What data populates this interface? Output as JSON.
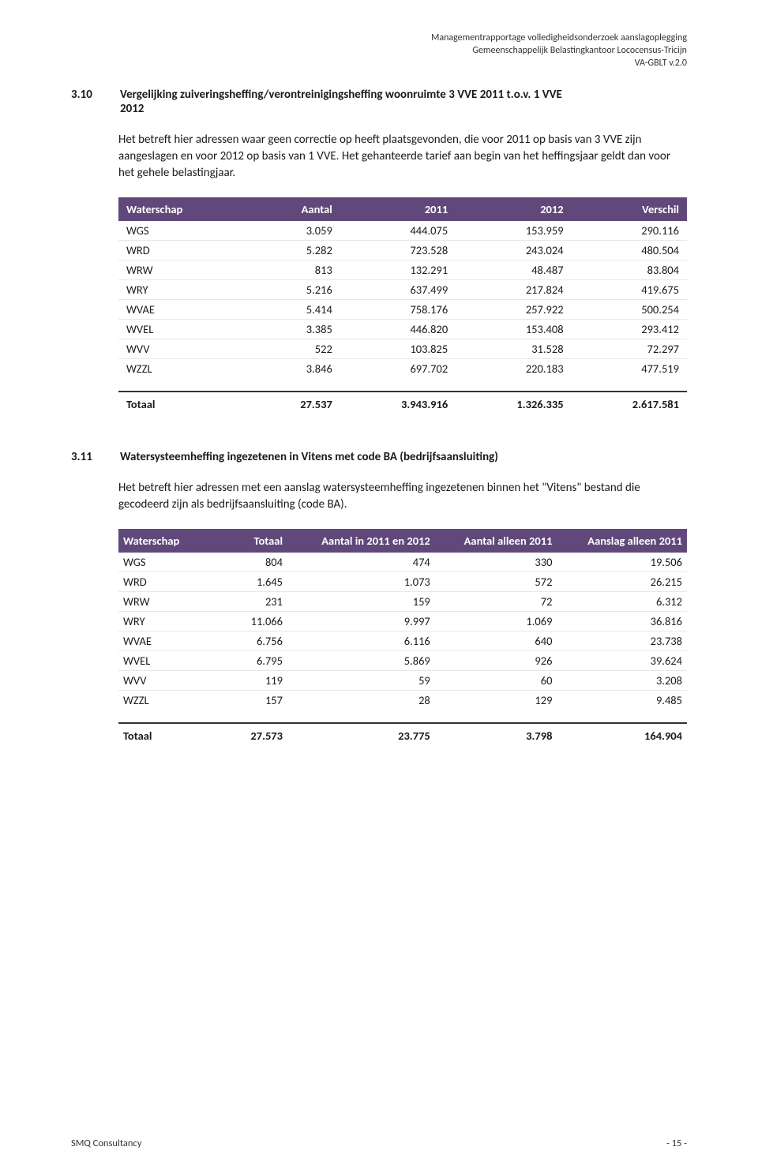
{
  "header": {
    "line1": "Managementrapportage  volledigheidsonderzoek aanslagoplegging",
    "line2": "Gemeenschappelijk Belastingkantoor Lococensus-Tricijn",
    "line3": "VA-GBLT v.2.0"
  },
  "section_3_10": {
    "num": "3.10",
    "title": "Vergelijking zuiveringsheffing/verontreinigingsheffing woonruimte 3 VVE 2011 t.o.v. 1 VVE",
    "sub": "2012",
    "para": "Het betreft hier adressen waar geen correctie op heeft plaatsgevonden, die voor 2011 op basis van 3 VVE zijn aangeslagen en voor 2012 op basis van 1 VVE. Het gehanteerde tarief aan begin van het heffingsjaar geldt dan voor het gehele belastingjaar.",
    "table": {
      "columns": [
        "Waterschap",
        "Aantal",
        "2011",
        "2012",
        "Verschil"
      ],
      "rows": [
        [
          "WGS",
          "3.059",
          "444.075",
          "153.959",
          "290.116"
        ],
        [
          "WRD",
          "5.282",
          "723.528",
          "243.024",
          "480.504"
        ],
        [
          "WRW",
          "813",
          "132.291",
          "48.487",
          "83.804"
        ],
        [
          "WRY",
          "5.216",
          "637.499",
          "217.824",
          "419.675"
        ],
        [
          "WVAE",
          "5.414",
          "758.176",
          "257.922",
          "500.254"
        ],
        [
          "WVEL",
          "3.385",
          "446.820",
          "153.408",
          "293.412"
        ],
        [
          "WVV",
          "522",
          "103.825",
          "31.528",
          "72.297"
        ],
        [
          "WZZL",
          "3.846",
          "697.702",
          "220.183",
          "477.519"
        ]
      ],
      "total": [
        "Totaal",
        "27.537",
        "3.943.916",
        "1.326.335",
        "2.617.581"
      ]
    }
  },
  "section_3_11": {
    "num": "3.11",
    "title": "Watersysteemheffing ingezetenen in Vitens met code BA (bedrijfsaansluiting)",
    "para": "Het betreft hier adressen met een aanslag watersysteemheffing ingezetenen binnen het \"Vitens\" bestand die gecodeerd zijn als bedrijfsaansluiting (code BA).",
    "table": {
      "columns": [
        "Waterschap",
        "Totaal",
        "Aantal in 2011 en 2012",
        "Aantal alleen 2011",
        "Aanslag alleen 2011"
      ],
      "rows": [
        [
          "WGS",
          "804",
          "474",
          "330",
          "19.506"
        ],
        [
          "WRD",
          "1.645",
          "1.073",
          "572",
          "26.215"
        ],
        [
          "WRW",
          "231",
          "159",
          "72",
          "6.312"
        ],
        [
          "WRY",
          "11.066",
          "9.997",
          "1.069",
          "36.816"
        ],
        [
          "WVAE",
          "6.756",
          "6.116",
          "640",
          "23.738"
        ],
        [
          "WVEL",
          "6.795",
          "5.869",
          "926",
          "39.624"
        ],
        [
          "WVV",
          "119",
          "59",
          "60",
          "3.208"
        ],
        [
          "WZZL",
          "157",
          "28",
          "129",
          "9.485"
        ]
      ],
      "total": [
        "Totaal",
        "27.573",
        "23.775",
        "3.798",
        "164.904"
      ]
    }
  },
  "footer": {
    "left": "SMQ Consultancy",
    "right": "- 15 -"
  }
}
